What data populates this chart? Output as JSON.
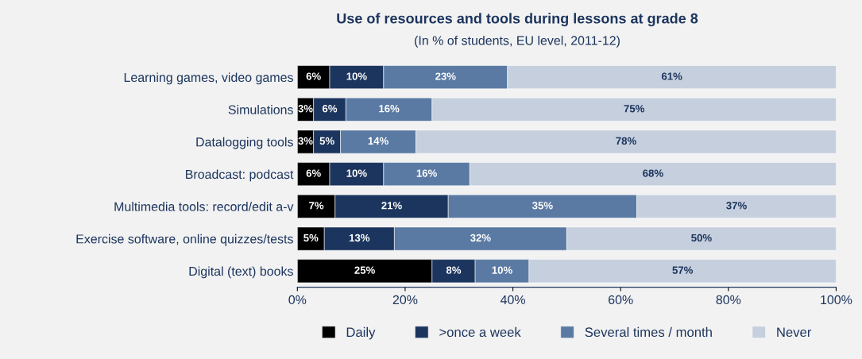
{
  "chart_data": {
    "type": "bar",
    "orientation": "horizontal",
    "stacked": true,
    "title": "Use of resources and tools during lessons at grade 8",
    "subtitle": "(In % of students, EU level, 2011-12)",
    "categories": [
      "Learning games, video games",
      "Simulations",
      "Datalogging tools",
      "Broadcast: podcast",
      "Multimedia tools: record/edit a-v",
      "Exercise software, online quizzes/tests",
      "Digital (text) books"
    ],
    "series": [
      {
        "name": "Daily",
        "color": "#000000",
        "values": [
          6,
          3,
          3,
          6,
          7,
          5,
          25
        ],
        "value_labels": [
          "6%",
          "3%",
          "3%",
          "6%",
          "7%",
          "5%",
          "25%"
        ]
      },
      {
        "name": ">once a week",
        "color": "#1c355e",
        "values": [
          10,
          6,
          5,
          10,
          21,
          13,
          8
        ],
        "value_labels": [
          "10%",
          "6%",
          "5%",
          "10%",
          "21%",
          "13%",
          "8%"
        ]
      },
      {
        "name": "Several times / month",
        "color": "#5a7aa3",
        "values": [
          23,
          16,
          14,
          16,
          35,
          32,
          10
        ],
        "value_labels": [
          "23%",
          "16%",
          "14%",
          "16%",
          "35%",
          "32%",
          "10%"
        ]
      },
      {
        "name": "Never",
        "color": "#c5cfdd",
        "values": [
          61,
          75,
          78,
          68,
          37,
          50,
          57
        ],
        "value_labels": [
          "61%",
          "75%",
          "78%",
          "68%",
          "37%",
          "50%",
          "57%"
        ]
      }
    ],
    "xlim": [
      0,
      100
    ],
    "xticks": [
      {
        "value": 0,
        "label": "0%"
      },
      {
        "value": 20,
        "label": "20%"
      },
      {
        "value": 40,
        "label": "40%"
      },
      {
        "value": 60,
        "label": "60%"
      },
      {
        "value": 80,
        "label": "80%"
      },
      {
        "value": 100,
        "label": "100%"
      }
    ],
    "grid": false,
    "legend": "bottom"
  }
}
